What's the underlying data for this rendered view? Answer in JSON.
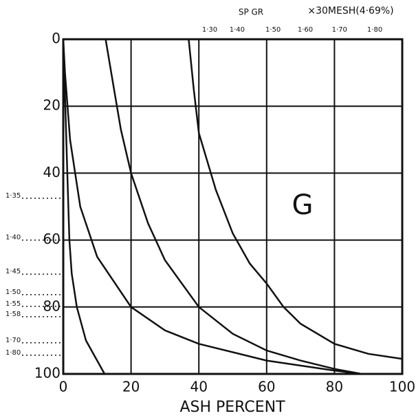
{
  "chart_data": {
    "type": "line",
    "top_title": "SP GR",
    "subtitle": "×30MESH(4·69%)",
    "xlabel": "ASH PERCENT",
    "annotation": "G",
    "annotation_x": 70.6,
    "annotation_y": 50,
    "xlim": [
      0,
      100
    ],
    "xticks": [
      0,
      20,
      40,
      60,
      80,
      100
    ],
    "ylim": [
      0,
      100
    ],
    "yticks": [
      0,
      20,
      40,
      60,
      80,
      100
    ],
    "y_inverted": true,
    "grid": true,
    "color": "#111111",
    "series": [
      {
        "x": [
          0,
          0.6,
          1.2,
          1.8,
          2.5,
          4,
          6.7,
          12.2
        ],
        "values": [
          0,
          20,
          40,
          60,
          70,
          80,
          90,
          100
        ]
      },
      {
        "x": [
          0,
          0.5,
          2,
          5,
          10,
          20,
          30,
          40,
          60,
          80,
          88
        ],
        "values": [
          0,
          10,
          30,
          50,
          65,
          80,
          87,
          91,
          96,
          99,
          100
        ]
      },
      {
        "x": [
          12.5,
          15,
          17,
          20,
          25,
          30,
          40,
          50,
          60,
          70,
          80,
          88
        ],
        "values": [
          0,
          15,
          27,
          40,
          55,
          66,
          80,
          88,
          93,
          96,
          98.5,
          100
        ]
      },
      {
        "x": [
          37,
          38.5,
          40,
          45,
          50,
          55,
          60,
          65,
          70,
          80,
          90,
          100
        ],
        "values": [
          0,
          15,
          28,
          45,
          58,
          67,
          73,
          80,
          85,
          91,
          94,
          95.5
        ]
      }
    ],
    "top_sg_ticks": [
      {
        "value": 43.2,
        "label": "1·30"
      },
      {
        "value": 51.3,
        "label": "1·40"
      },
      {
        "value": 61.9,
        "label": "1·50"
      },
      {
        "value": 71.4,
        "label": "1·60"
      },
      {
        "value": 81.5,
        "label": "1·70"
      },
      {
        "value": 91.9,
        "label": "1·80"
      }
    ],
    "left_sg_ticks": [
      {
        "value": 47.5,
        "label": "1·35"
      },
      {
        "value": 60,
        "label": "1·40"
      },
      {
        "value": 70.2,
        "label": "1·45"
      },
      {
        "value": 76.3,
        "label": "1·50"
      },
      {
        "value": 79.8,
        "label": "1·55"
      },
      {
        "value": 82.9,
        "label": "1·58"
      },
      {
        "value": 90.7,
        "label": "1·70"
      },
      {
        "value": 94.4,
        "label": "1·80"
      }
    ]
  }
}
